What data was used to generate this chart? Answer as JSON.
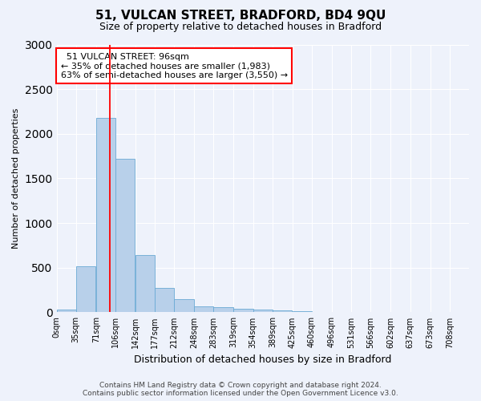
{
  "title": "51, VULCAN STREET, BRADFORD, BD4 9QU",
  "subtitle": "Size of property relative to detached houses in Bradford",
  "xlabel": "Distribution of detached houses by size in Bradford",
  "ylabel": "Number of detached properties",
  "footer_line1": "Contains HM Land Registry data © Crown copyright and database right 2024.",
  "footer_line2": "Contains public sector information licensed under the Open Government Licence v3.0.",
  "annotation_line1": "  51 VULCAN STREET: 96sqm",
  "annotation_line2": "← 35% of detached houses are smaller (1,983)",
  "annotation_line3": "63% of semi-detached houses are larger (3,550) →",
  "bar_color": "#b8d0ea",
  "bar_edge_color": "#6aaad4",
  "background_color": "#eef2fb",
  "grid_color": "#ffffff",
  "red_line_x": 96,
  "bin_left_edges": [
    0,
    35,
    71,
    106,
    142,
    177,
    212,
    248,
    283,
    319,
    354,
    389,
    425,
    460,
    496,
    531,
    566,
    602,
    637,
    673
  ],
  "bin_width": 35,
  "values": [
    28,
    520,
    2180,
    1720,
    640,
    270,
    145,
    70,
    55,
    38,
    28,
    18,
    10,
    5,
    2,
    1,
    0,
    0,
    0,
    0
  ],
  "xlim_min": 0,
  "xlim_max": 743,
  "ylim": [
    0,
    3000
  ],
  "yticks": [
    0,
    500,
    1000,
    1500,
    2000,
    2500,
    3000
  ],
  "xtick_labels": [
    "0sqm",
    "35sqm",
    "71sqm",
    "106sqm",
    "142sqm",
    "177sqm",
    "212sqm",
    "248sqm",
    "283sqm",
    "319sqm",
    "354sqm",
    "389sqm",
    "425sqm",
    "460sqm",
    "496sqm",
    "531sqm",
    "566sqm",
    "602sqm",
    "637sqm",
    "673sqm",
    "708sqm"
  ],
  "xtick_positions": [
    0,
    35,
    71,
    106,
    142,
    177,
    212,
    248,
    283,
    319,
    354,
    389,
    425,
    460,
    496,
    531,
    566,
    602,
    637,
    673,
    708
  ],
  "title_fontsize": 11,
  "subtitle_fontsize": 9,
  "ylabel_fontsize": 8,
  "xlabel_fontsize": 9,
  "tick_fontsize": 7,
  "footer_fontsize": 6.5,
  "annotation_fontsize": 8
}
